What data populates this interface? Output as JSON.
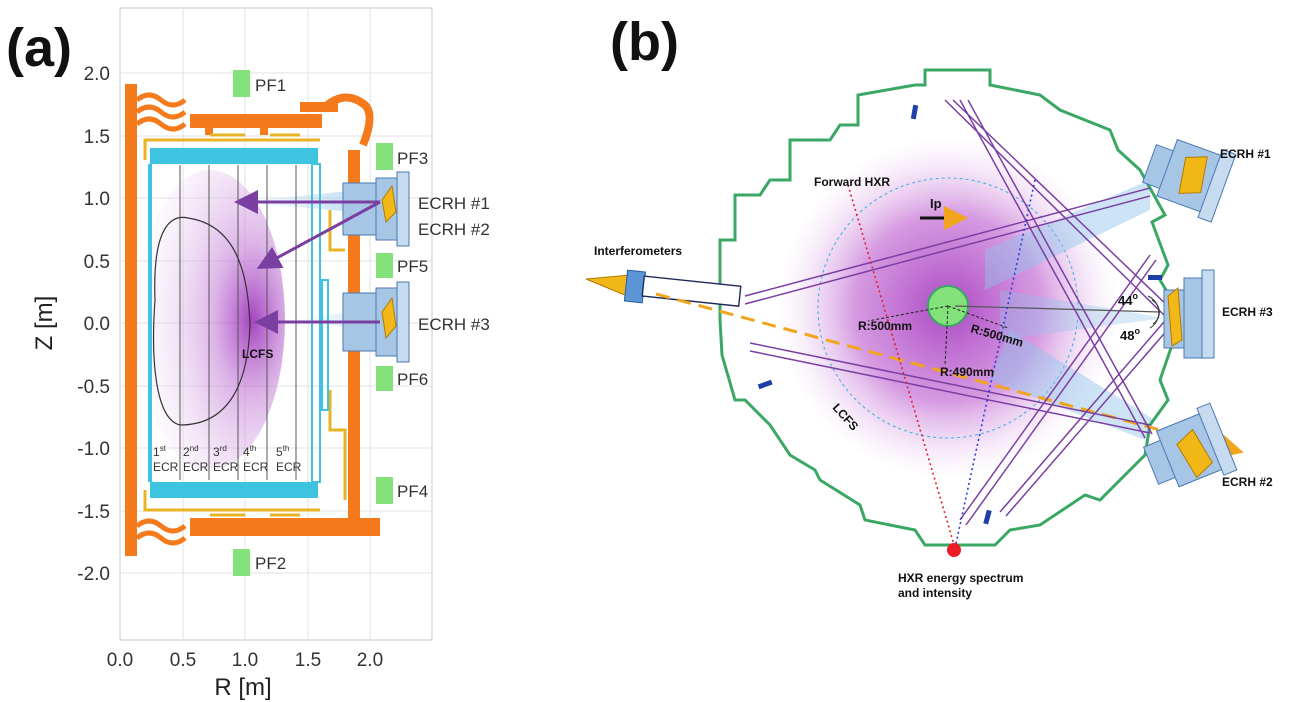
{
  "panels": {
    "a": {
      "label": "(a)",
      "x_label": "R [m]",
      "y_label": "Z [m]",
      "x_ticks": [
        "0.0",
        "0.5",
        "1.0",
        "1.5",
        "2.0"
      ],
      "y_ticks": [
        "2.0",
        "1.5",
        "1.0",
        "0.5",
        "0.0",
        "-0.5",
        "-1.0",
        "-1.5",
        "-2.0"
      ],
      "coils": [
        "PF1",
        "PF3",
        "PF5",
        "PF6",
        "PF4",
        "PF2"
      ],
      "ecrh_labels": [
        "ECRH #1",
        "ECRH #2",
        "ECRH #3"
      ],
      "lcfs_label": "LCFS",
      "ecr_layers": [
        {
          "num": "1",
          "sup": "st",
          "name": "ECR"
        },
        {
          "num": "2",
          "sup": "nd",
          "name": "ECR"
        },
        {
          "num": "3",
          "sup": "rd",
          "name": "ECR"
        },
        {
          "num": "4",
          "sup": "th",
          "name": "ECR"
        },
        {
          "num": "5",
          "sup": "th",
          "name": "ECR"
        }
      ]
    },
    "b": {
      "label": "(b)",
      "interferometers": "Interferometers",
      "forward_hxr": "Forward HXR",
      "ip": "Ip",
      "lcfs": "LCFS",
      "r1": "R:500mm",
      "r2": "R:500mm",
      "r3": "R:490mm",
      "angle1_num": "44",
      "angle2_num": "48",
      "angle_sup": "o",
      "ecrh1": "ECRH #1",
      "ecrh2": "ECRH #2",
      "ecrh3": "ECRH #3",
      "hxr_line1": "HXR energy spectrum",
      "hxr_line2": "and intensity"
    }
  },
  "colors": {
    "vessel_orange": "#f47a1c",
    "liner_cyan": "#3ec3e0",
    "coil_green": "#84e27a",
    "beam_purple": "#7b3fa2",
    "flange_green": "#3aa864",
    "port_blue": "#9ab8dc",
    "antenna_gold": "#f2b818",
    "plasma_magenta": "#b44bc0"
  }
}
